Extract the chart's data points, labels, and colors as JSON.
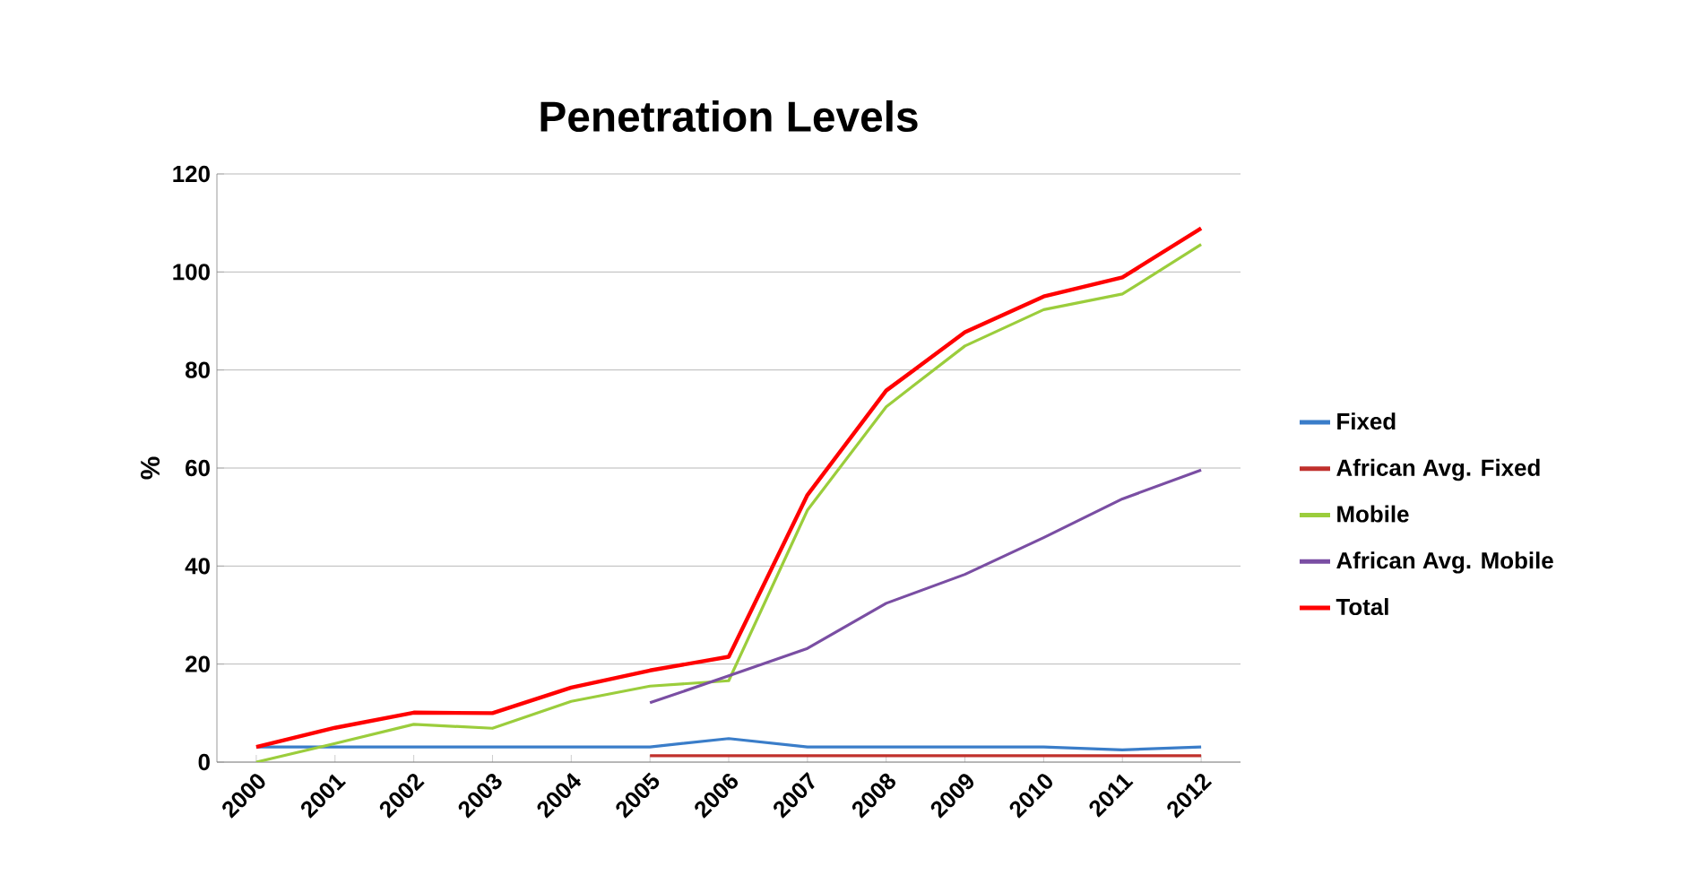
{
  "chart_data": {
    "type": "line",
    "title": "Penetration Levels",
    "ylabel": "%",
    "categories": [
      "2000",
      "2001",
      "2002",
      "2003",
      "2004",
      "2005",
      "2006",
      "2007",
      "2008",
      "2009",
      "2010",
      "2011",
      "2012"
    ],
    "series": [
      {
        "name": "Fixed",
        "color": "#3a7dc9",
        "values": [
          3.1,
          3.1,
          3.1,
          3.1,
          3.1,
          3.1,
          4.8,
          3.1,
          3.1,
          3.1,
          3.1,
          2.5,
          3.1
        ]
      },
      {
        "name": "African Avg. Fixed",
        "color": "#c0302c",
        "values": [
          null,
          null,
          null,
          null,
          null,
          1.3,
          1.3,
          1.3,
          1.3,
          1.3,
          1.3,
          1.3,
          1.3
        ]
      },
      {
        "name": "Mobile",
        "color": "#9bcd3c",
        "values": [
          0,
          3.8,
          7.7,
          6.9,
          12.4,
          15.5,
          16.6,
          51.4,
          72.5,
          84.9,
          92.3,
          95.5,
          105.6
        ]
      },
      {
        "name": "African Avg. Mobile",
        "color": "#7a4ea3",
        "values": [
          null,
          null,
          null,
          null,
          null,
          12.1,
          17.6,
          23.2,
          32.4,
          38.3,
          45.8,
          53.7,
          59.6
        ]
      },
      {
        "name": "Total",
        "color": "#ff0000",
        "values": [
          3.1,
          7,
          10.1,
          10,
          15.2,
          18.7,
          21.5,
          54.5,
          75.8,
          87.7,
          95,
          98.9,
          108.9
        ]
      }
    ],
    "ylim": [
      0,
      120
    ],
    "yticks": [
      0,
      20,
      40,
      60,
      80,
      100,
      120
    ],
    "grid": "y",
    "legend": "right",
    "marker": "none",
    "line_style": "solid"
  }
}
